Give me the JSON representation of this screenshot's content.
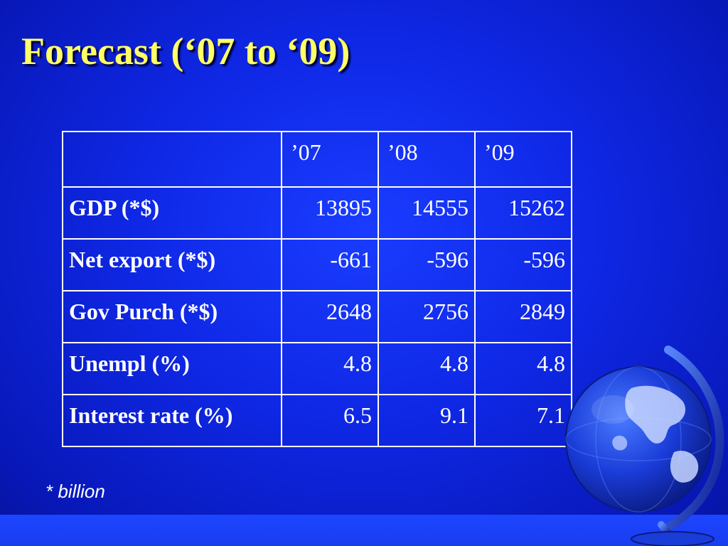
{
  "slide": {
    "title": "Forecast (‘07 to ‘09)",
    "footnote": "* billion"
  },
  "table": {
    "columns": [
      "",
      "’07",
      "’08",
      "’09"
    ],
    "rows": [
      {
        "label": "GDP (*$)",
        "values": [
          "13895",
          "14555",
          "15262"
        ]
      },
      {
        "label": "Net export (*$)",
        "values": [
          "-661",
          "-596",
          "-596"
        ]
      },
      {
        "label": "Gov Purch (*$)",
        "values": [
          "2648",
          "2756",
          "2849"
        ]
      },
      {
        "label": "Unempl (%)",
        "values": [
          "4.8",
          "4.8",
          "4.8"
        ]
      },
      {
        "label": "Interest rate (%)",
        "values": [
          "6.5",
          "9.1",
          "7.1"
        ]
      }
    ]
  },
  "colors": {
    "background": "#0f28e6",
    "title": "#ffff66",
    "text": "#ffffff"
  },
  "decoration": {
    "icon": "globe-icon"
  }
}
